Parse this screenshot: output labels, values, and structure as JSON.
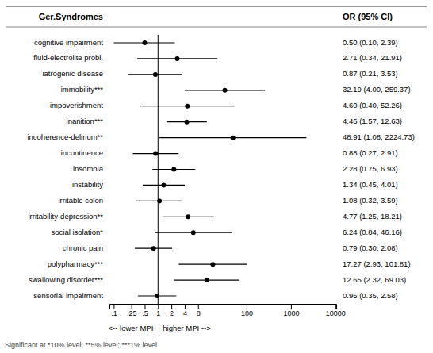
{
  "chart_data": {
    "type": "forest",
    "headers": [
      "Ger.Syndromes",
      "OR (95% CI)"
    ],
    "categories": [
      "cognitive impairment",
      "fluid-electrolite probl.",
      "iatrogenic disease",
      "immobility***",
      "impoverishment",
      "inanition***",
      "incoherence-delirium**",
      "incontinence",
      "insomnia",
      "instability",
      "irritable colon",
      "irritability-depression**",
      "social isolation*",
      "chronic pain",
      "polypharmacy***",
      "swallowing disorder***",
      "sensorial impairment"
    ],
    "values": [
      0.5,
      2.71,
      0.87,
      32.19,
      4.6,
      4.46,
      48.91,
      0.88,
      2.28,
      1.34,
      1.08,
      4.77,
      6.24,
      0.79,
      17.27,
      12.65,
      0.95
    ],
    "lower": [
      0.1,
      0.34,
      0.21,
      4.0,
      0.4,
      1.57,
      1.08,
      0.27,
      0.75,
      0.45,
      0.32,
      1.25,
      0.84,
      0.3,
      2.93,
      2.32,
      0.35
    ],
    "upper": [
      2.39,
      21.91,
      3.53,
      259.37,
      52.26,
      12.63,
      2224.73,
      2.91,
      6.93,
      4.01,
      3.59,
      18.21,
      46.16,
      2.08,
      101.81,
      69.03,
      2.58
    ],
    "value_labels": [
      "0.50 (0.10, 2.39)",
      "2.71 (0.34, 21.91)",
      "0.87 (0.21, 3.53)",
      "32.19 (4.00, 259.37)",
      "4.60 (0.40, 52.26)",
      "4.46 (1.57, 12.63)",
      "48.91 (1.08, 2224.73)",
      "0.88 (0.27, 2.91)",
      "2.28 (0.75, 6.93)",
      "1.34 (0.45, 4.01)",
      "1.08 (0.32, 3.59)",
      "4.77 (1.25, 18.21)",
      "6.24 (0.84, 46.16)",
      "0.79 (0.30, 2.08)",
      "17.27 (2.93, 101.81)",
      "12.65 (2.32, 69.03)",
      "0.95 (0.35, 2.58)"
    ],
    "data_labels": true,
    "reference_line": 1,
    "log": "x",
    "xlim": [
      0.08,
      10500
    ],
    "xticks": [
      {
        "value": 0.1,
        "label": ".1"
      },
      {
        "value": 0.25,
        "label": ".25"
      },
      {
        "value": 0.5,
        "label": ".5"
      },
      1,
      2,
      4,
      8,
      100,
      1000,
      10000
    ],
    "xlabel_left": "<-- lower MPI",
    "xlabel_right": "higher MPI -->",
    "footnote": "Significant at *10% level; **5% level; ***1% level",
    "color": "#000000"
  }
}
